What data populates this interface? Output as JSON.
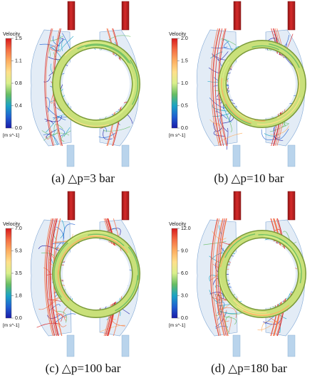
{
  "panels": [
    {
      "label": "(a)  △p=3  bar",
      "colorbar": {
        "title": "Velocity",
        "unit": "[m s^-1]",
        "ticks": [
          "1.5",
          "1.1",
          "0.8",
          "0.4",
          "0.0"
        ]
      },
      "intensity": 0.18
    },
    {
      "label": "(b)  △p=10  bar",
      "colorbar": {
        "title": "Velocity",
        "unit": "[m s^-1]",
        "ticks": [
          "2.0",
          "1.5",
          "1.0",
          "0.5",
          "0.0"
        ]
      },
      "intensity": 0.35
    },
    {
      "label": "(c)  △p=100  bar",
      "colorbar": {
        "title": "Velocity",
        "unit": "[m s^-1]",
        "ticks": [
          "7.0",
          "5.3",
          "3.5",
          "1.8",
          "0.0"
        ]
      },
      "intensity": 0.8
    },
    {
      "label": "(d)  △p=180  bar",
      "colorbar": {
        "title": "Velocity",
        "unit": "[m s^-1]",
        "ticks": [
          "12.0",
          "9.0",
          "6.0",
          "3.0",
          "0.0"
        ]
      },
      "intensity": 0.9
    }
  ],
  "colors": {
    "colormap": [
      "#d7191c",
      "#f46d43",
      "#fdae61",
      "#fee08b",
      "#d9ef8b",
      "#66bd63",
      "#1aa3c4",
      "#1f5fd1",
      "#1a1aa8"
    ],
    "inlet_pipe": "#d62a2a",
    "outlet_pipe": "#b9d4ec",
    "housing": "#aec9e6",
    "ring": "#c9e07a"
  }
}
